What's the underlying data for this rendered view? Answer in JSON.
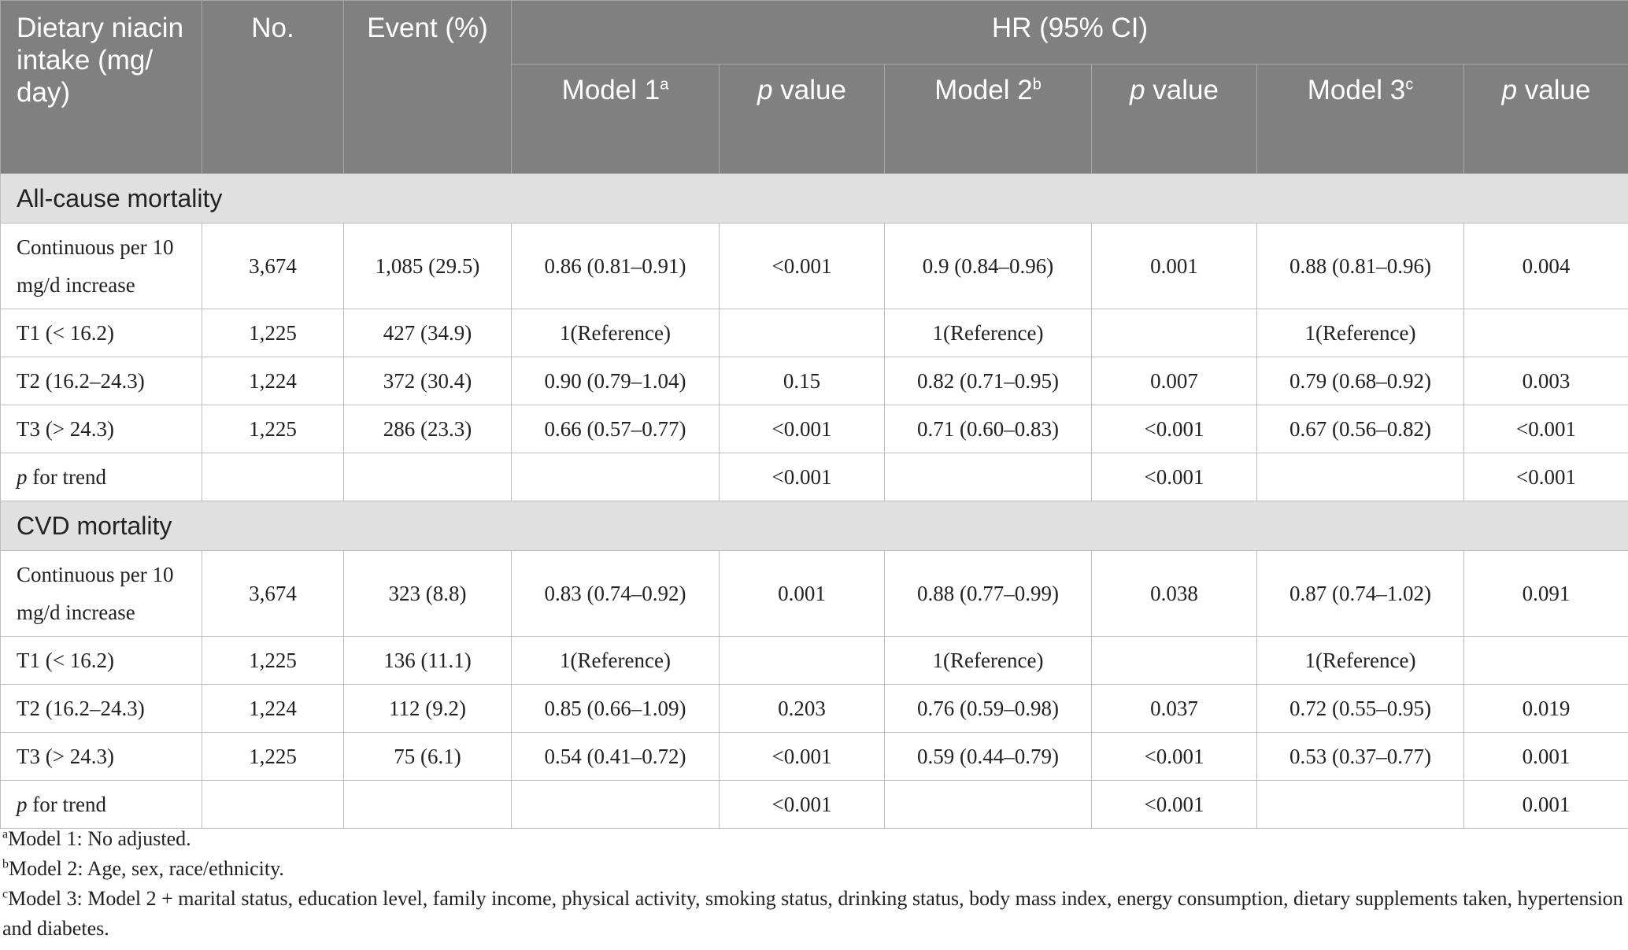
{
  "table": {
    "header": {
      "col_intake": "Dietary niacin intake (mg/ day)",
      "col_no": "No.",
      "col_event": "Event (%)",
      "col_hr": "HR (95% CI)",
      "model1": "Model 1",
      "model1_sup": "a",
      "model2": "Model 2",
      "model2_sup": "b",
      "model3": "Model 3",
      "model3_sup": "c",
      "p_italic": "p",
      "p_rest": " value"
    },
    "sections": [
      {
        "title": "All-cause mortality",
        "rows": [
          {
            "label": "Continuous per 10 mg/d increase",
            "no": "3,674",
            "event": "1,085 (29.5)",
            "m1": "0.86 (0.81–0.91)",
            "p1": "<0.001",
            "m2": "0.9 (0.84–0.96)",
            "p2": "0.001",
            "m3": "0.88 (0.81–0.96)",
            "p3": "0.004"
          },
          {
            "label": "T1 (< 16.2)",
            "no": "1,225",
            "event": "427 (34.9)",
            "m1": "1(Reference)",
            "p1": "",
            "m2": "1(Reference)",
            "p2": "",
            "m3": "1(Reference)",
            "p3": ""
          },
          {
            "label": "T2 (16.2–24.3)",
            "no": "1,224",
            "event": "372 (30.4)",
            "m1": "0.90 (0.79–1.04)",
            "p1": "0.15",
            "m2": "0.82 (0.71–0.95)",
            "p2": "0.007",
            "m3": "0.79 (0.68–0.92)",
            "p3": "0.003"
          },
          {
            "label": "T3 (> 24.3)",
            "no": "1,225",
            "event": "286 (23.3)",
            "m1": "0.66 (0.57–0.77)",
            "p1": "<0.001",
            "m2": "0.71 (0.60–0.83)",
            "p2": "<0.001",
            "m3": "0.67 (0.56–0.82)",
            "p3": "<0.001"
          },
          {
            "label_italic": "p",
            "label_rest": " for trend",
            "no": "",
            "event": "",
            "m1": "",
            "p1": "<0.001",
            "m2": "",
            "p2": "<0.001",
            "m3": "",
            "p3": "<0.001"
          }
        ]
      },
      {
        "title": "CVD mortality",
        "rows": [
          {
            "label": "Continuous per 10 mg/d increase",
            "no": "3,674",
            "event": "323 (8.8)",
            "m1": "0.83 (0.74–0.92)",
            "p1": "0.001",
            "m2": "0.88 (0.77–0.99)",
            "p2": "0.038",
            "m3": "0.87 (0.74–1.02)",
            "p3": "0.091"
          },
          {
            "label": "T1 (< 16.2)",
            "no": "1,225",
            "event": "136 (11.1)",
            "m1": "1(Reference)",
            "p1": "",
            "m2": "1(Reference)",
            "p2": "",
            "m3": "1(Reference)",
            "p3": ""
          },
          {
            "label": "T2 (16.2–24.3)",
            "no": "1,224",
            "event": "112 (9.2)",
            "m1": "0.85 (0.66–1.09)",
            "p1": "0.203",
            "m2": "0.76 (0.59–0.98)",
            "p2": "0.037",
            "m3": "0.72 (0.55–0.95)",
            "p3": "0.019"
          },
          {
            "label": "T3 (> 24.3)",
            "no": "1,225",
            "event": "75 (6.1)",
            "m1": "0.54 (0.41–0.72)",
            "p1": "<0.001",
            "m2": "0.59 (0.44–0.79)",
            "p2": "<0.001",
            "m3": "0.53 (0.37–0.77)",
            "p3": "0.001"
          },
          {
            "label_italic": "p",
            "label_rest": " for trend",
            "no": "",
            "event": "",
            "m1": "",
            "p1": "<0.001",
            "m2": "",
            "p2": "<0.001",
            "m3": "",
            "p3": "0.001"
          }
        ]
      }
    ]
  },
  "footnotes": [
    {
      "mark": "a",
      "text": "Model 1: No adjusted."
    },
    {
      "mark": "b",
      "text": "Model 2: Age, sex, race/ethnicity."
    },
    {
      "mark": "c",
      "text": "Model 3: Model 2 + marital status, education level, family income, physical activity, smoking status, drinking status, body mass index, energy consumption, dietary supplements taken, hypertension and diabetes."
    }
  ]
}
